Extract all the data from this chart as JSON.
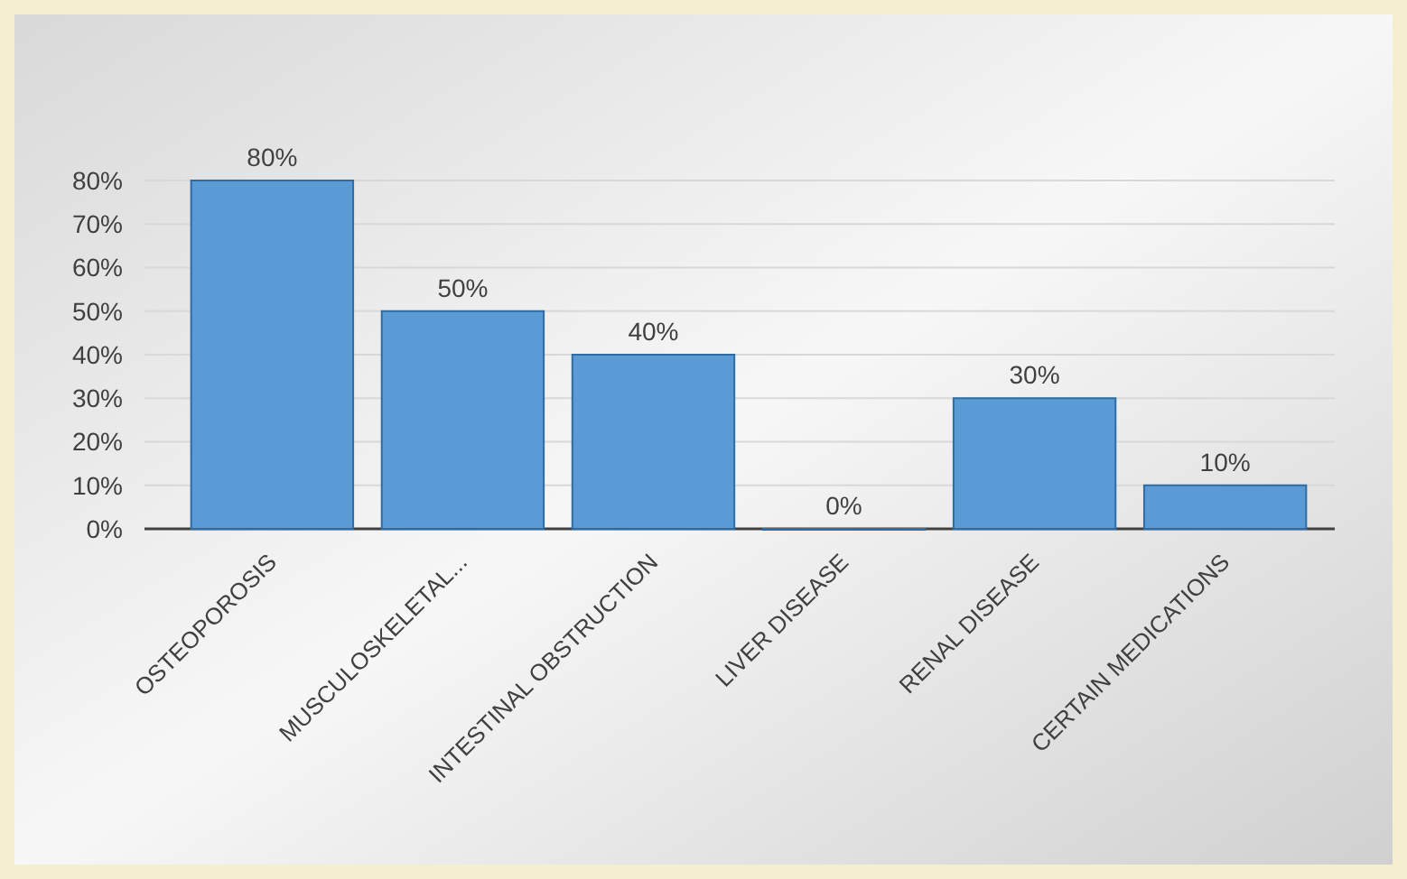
{
  "chart_data": {
    "type": "bar",
    "categories": [
      "OSTEOPOROSIS",
      "MUSCULOSKELETAL...",
      "INTESTINAL OBSTRUCTION",
      "LIVER DISEASE",
      "RENAL DISEASE",
      "CERTAIN MEDICATIONS"
    ],
    "values": [
      80,
      50,
      40,
      0,
      30,
      10
    ],
    "value_labels": [
      "80%",
      "50%",
      "40%",
      "0%",
      "30%",
      "10%"
    ],
    "color": "#5b9bd5",
    "ylim": [
      0,
      80
    ],
    "yticks": [
      {
        "value": 0,
        "label": "0%"
      },
      {
        "value": 10,
        "label": "10%"
      },
      {
        "value": 20,
        "label": "20%"
      },
      {
        "value": 30,
        "label": "30%"
      },
      {
        "value": 40,
        "label": "40%"
      },
      {
        "value": 50,
        "label": "50%"
      },
      {
        "value": 60,
        "label": "60%"
      },
      {
        "value": 70,
        "label": "70%"
      },
      {
        "value": 80,
        "label": "80%"
      }
    ],
    "grid": true
  }
}
